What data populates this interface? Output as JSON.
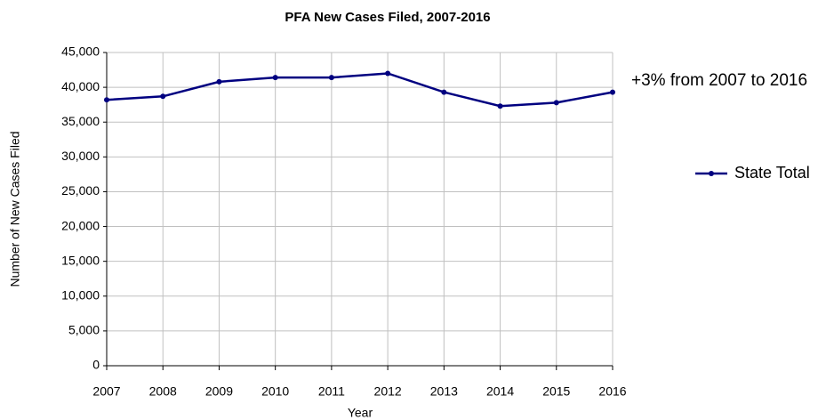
{
  "chart_data": {
    "type": "line",
    "title": "PFA New Cases Filed, 2007-2016",
    "x_label": "Year",
    "y_label": "Number of New Cases Filed",
    "annotation": "+3% from 2007 to 2016",
    "categories": [
      "2007",
      "2008",
      "2009",
      "2010",
      "2011",
      "2012",
      "2013",
      "2014",
      "2015",
      "2016"
    ],
    "series": [
      {
        "name": "State Total",
        "color": "#000080",
        "values": [
          38200,
          38700,
          40800,
          41400,
          41400,
          42000,
          39300,
          37300,
          37800,
          39300
        ]
      }
    ],
    "ylim": [
      0,
      45000
    ],
    "yticks": [
      0,
      {
        "value": 5000,
        "label": "5,000"
      },
      {
        "value": 10000,
        "label": "10,000"
      },
      {
        "value": 15000,
        "label": "15,000"
      },
      {
        "value": 20000,
        "label": "20,000"
      },
      {
        "value": 25000,
        "label": "25,000"
      },
      {
        "value": 30000,
        "label": "30,000"
      },
      {
        "value": 35000,
        "label": "35,000"
      },
      {
        "value": 40000,
        "label": "40,000"
      },
      {
        "value": 45000,
        "label": "45,000"
      }
    ],
    "grid": true,
    "legend": "right"
  }
}
